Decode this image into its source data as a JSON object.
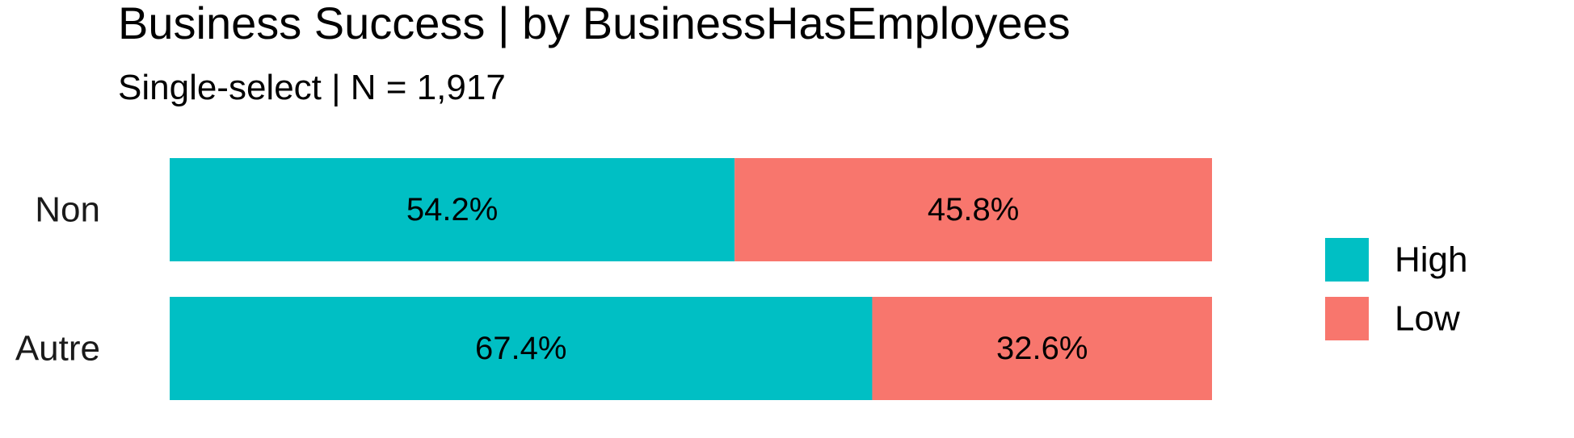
{
  "chart_data": {
    "type": "bar",
    "orientation": "horizontal",
    "stacked": true,
    "percent": true,
    "title": "Business Success | by BusinessHasEmployees",
    "subtitle": "Single-select | N = 1,917",
    "categories": [
      "Non",
      "Autre"
    ],
    "series": [
      {
        "name": "High",
        "color": "#00BFC4",
        "values": [
          54.2,
          67.4
        ],
        "labels": [
          "54.2%",
          "67.4%"
        ]
      },
      {
        "name": "Low",
        "color": "#F8766D",
        "values": [
          45.8,
          32.6
        ],
        "labels": [
          "45.8%",
          "32.6%"
        ]
      }
    ],
    "xlim": [
      0,
      100
    ],
    "grid": false,
    "axes_visible": false,
    "legend": {
      "position": "right",
      "entries": [
        "High",
        "Low"
      ]
    }
  }
}
